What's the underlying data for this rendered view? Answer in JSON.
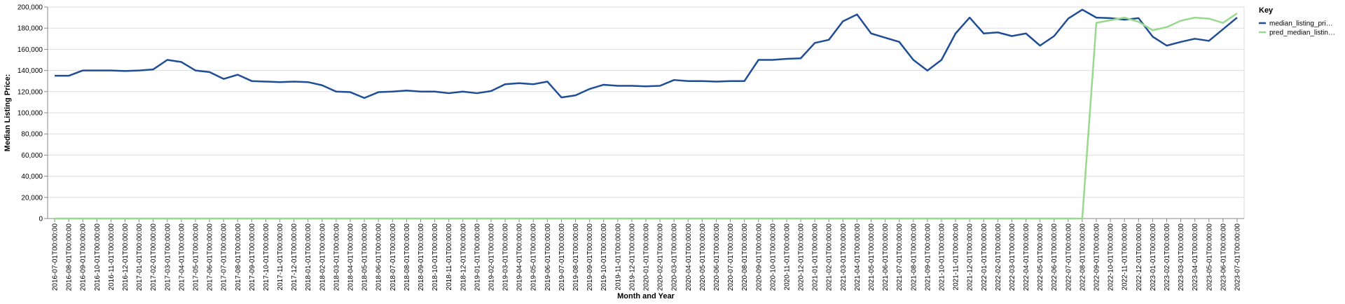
{
  "chart_data": {
    "type": "line",
    "x_label": "Month and Year",
    "y_label": "Median Listing Price:",
    "legend_title": "Key",
    "categories": [
      "2016-07-01T00:00:00",
      "2016-08-01T00:00:00",
      "2016-09-01T00:00:00",
      "2016-10-01T00:00:00",
      "2016-11-01T00:00:00",
      "2016-12-01T00:00:00",
      "2017-01-01T00:00:00",
      "2017-02-01T00:00:00",
      "2017-03-01T00:00:00",
      "2017-04-01T00:00:00",
      "2017-05-01T00:00:00",
      "2017-06-01T00:00:00",
      "2017-07-01T00:00:00",
      "2017-08-01T00:00:00",
      "2017-09-01T00:00:00",
      "2017-10-01T00:00:00",
      "2017-11-01T00:00:00",
      "2017-12-01T00:00:00",
      "2018-01-01T00:00:00",
      "2018-02-01T00:00:00",
      "2018-03-01T00:00:00",
      "2018-04-01T00:00:00",
      "2018-05-01T00:00:00",
      "2018-06-01T00:00:00",
      "2018-07-01T00:00:00",
      "2018-08-01T00:00:00",
      "2018-09-01T00:00:00",
      "2018-10-01T00:00:00",
      "2018-11-01T00:00:00",
      "2018-12-01T00:00:00",
      "2019-01-01T00:00:00",
      "2019-02-01T00:00:00",
      "2019-03-01T00:00:00",
      "2019-04-01T00:00:00",
      "2019-05-01T00:00:00",
      "2019-06-01T00:00:00",
      "2019-07-01T00:00:00",
      "2019-08-01T00:00:00",
      "2019-09-01T00:00:00",
      "2019-10-01T00:00:00",
      "2019-11-01T00:00:00",
      "2019-12-01T00:00:00",
      "2020-01-01T00:00:00",
      "2020-02-01T00:00:00",
      "2020-03-01T00:00:00",
      "2020-04-01T00:00:00",
      "2020-05-01T00:00:00",
      "2020-06-01T00:00:00",
      "2020-07-01T00:00:00",
      "2020-08-01T00:00:00",
      "2020-09-01T00:00:00",
      "2020-10-01T00:00:00",
      "2020-11-01T00:00:00",
      "2020-12-01T00:00:00",
      "2021-01-01T00:00:00",
      "2021-02-01T00:00:00",
      "2021-03-01T00:00:00",
      "2021-04-01T00:00:00",
      "2021-05-01T00:00:00",
      "2021-06-01T00:00:00",
      "2021-07-01T00:00:00",
      "2021-08-01T00:00:00",
      "2021-09-01T00:00:00",
      "2021-10-01T00:00:00",
      "2021-11-01T00:00:00",
      "2021-12-01T00:00:00",
      "2022-01-01T00:00:00",
      "2022-02-01T00:00:00",
      "2022-03-01T00:00:00",
      "2022-04-01T00:00:00",
      "2022-05-01T00:00:00",
      "2022-06-01T00:00:00",
      "2022-07-01T00:00:00",
      "2022-08-01T00:00:00",
      "2022-09-01T00:00:00",
      "2022-10-01T00:00:00",
      "2022-11-01T00:00:00",
      "2022-12-01T00:00:00",
      "2023-01-01T00:00:00",
      "2023-02-01T00:00:00",
      "2023-03-01T00:00:00",
      "2023-04-01T00:00:00",
      "2023-05-01T00:00:00",
      "2023-06-01T00:00:00",
      "2023-07-01T00:00:00"
    ],
    "series": [
      {
        "name": "median_listing_pri…",
        "color": "#1f4e96",
        "values": [
          135000,
          135000,
          140000,
          140000,
          140000,
          139500,
          140000,
          141000,
          150000,
          148000,
          140000,
          138500,
          132000,
          136000,
          130000,
          129500,
          129000,
          129500,
          129000,
          126000,
          120000,
          119500,
          114000,
          119500,
          120000,
          121000,
          120000,
          120000,
          118500,
          120000,
          118500,
          120500,
          127000,
          128000,
          127000,
          129500,
          114500,
          116500,
          122500,
          126500,
          125500,
          125500,
          125000,
          125500,
          131000,
          130000,
          130000,
          129500,
          130000,
          130000,
          150000,
          150000,
          151000,
          151500,
          166000,
          169000,
          186500,
          193000,
          175000,
          171000,
          167000,
          150000,
          139900,
          150000,
          175000,
          190000,
          175000,
          176000,
          172500,
          175000,
          163500,
          172500,
          189000,
          197500,
          190000,
          189500,
          188000,
          189500,
          172000,
          163500,
          167000,
          170000,
          168000,
          179000,
          190000
        ]
      },
      {
        "name": "pred_median_listin…",
        "color": "#98d98e",
        "values": [
          0,
          0,
          0,
          0,
          0,
          0,
          0,
          0,
          0,
          0,
          0,
          0,
          0,
          0,
          0,
          0,
          0,
          0,
          0,
          0,
          0,
          0,
          0,
          0,
          0,
          0,
          0,
          0,
          0,
          0,
          0,
          0,
          0,
          0,
          0,
          0,
          0,
          0,
          0,
          0,
          0,
          0,
          0,
          0,
          0,
          0,
          0,
          0,
          0,
          0,
          0,
          0,
          0,
          0,
          0,
          0,
          0,
          0,
          0,
          0,
          0,
          0,
          0,
          0,
          0,
          0,
          0,
          0,
          0,
          0,
          0,
          0,
          0,
          0,
          185000,
          187500,
          190000,
          186000,
          178000,
          181000,
          187000,
          190000,
          189000,
          185000,
          194000
        ]
      }
    ],
    "ylim": [
      0,
      200000
    ],
    "yticks": [
      0,
      {
        "value": 20000,
        "label": "20,000"
      },
      {
        "value": 40000,
        "label": "40,000"
      },
      {
        "value": 60000,
        "label": "60,000"
      },
      {
        "value": 80000,
        "label": "80,000"
      },
      {
        "value": 100000,
        "label": "100,000"
      },
      {
        "value": 120000,
        "label": "120,000"
      },
      {
        "value": 140000,
        "label": "140,000"
      },
      {
        "value": 160000,
        "label": "160,000"
      },
      {
        "value": 180000,
        "label": "180,000"
      },
      {
        "value": 200000,
        "label": "200,000"
      }
    ],
    "grid": true
  }
}
